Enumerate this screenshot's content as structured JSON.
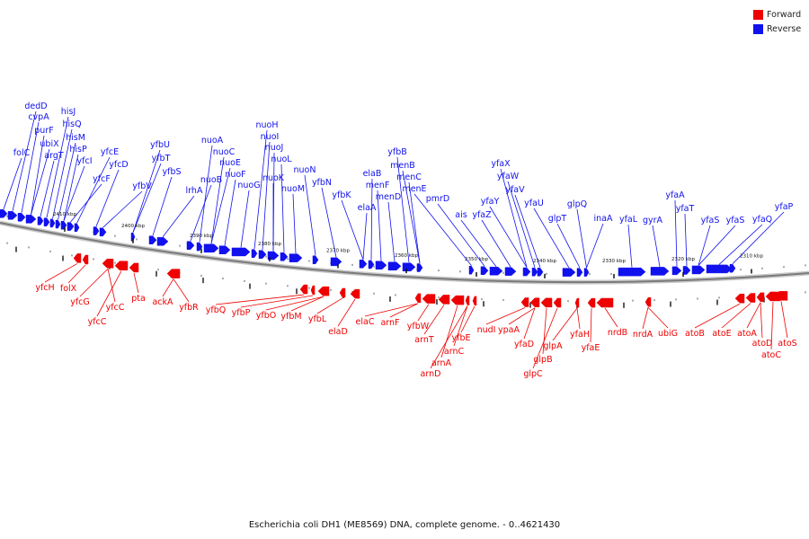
{
  "legend": {
    "forward_label": "Forward",
    "reverse_label": "Reverse",
    "forward_color": "#ee0000",
    "reverse_color": "#1111ee"
  },
  "caption": "Escherichia coli DH1 (ME8569) DNA, complete genome. - 0..4621430",
  "colors": {
    "backbone": "#7a7a7a",
    "tick": "#222222"
  },
  "scale_labels": [
    "2410 kbp",
    "2400 kbp",
    "2390 kbp",
    "2380 kbp",
    "2370 kbp",
    "2360 kbp",
    "2350 kbp",
    "2340 kbp",
    "2330 kbp",
    "2320 kbp",
    "2310 kbp"
  ],
  "reverse_genes": [
    "folC",
    "dedD",
    "cvpA",
    "purF",
    "ubiX",
    "argT",
    "hisJ",
    "hisQ",
    "hisM",
    "hisP",
    "yfcI",
    "yfcF",
    "yfcE",
    "yfcD",
    "yfbV",
    "yfbU",
    "yfbT",
    "yfbS",
    "lrhA",
    "nuoB",
    "nuoA",
    "nuoC",
    "nuoE",
    "nuoF",
    "nuoG",
    "nuoH",
    "nuoI",
    "nuoJ",
    "nuoK",
    "nuoL",
    "nuoM",
    "nuoN",
    "yfbN",
    "yfbK",
    "elaA",
    "elaB",
    "menF",
    "menD",
    "yfbB",
    "menB",
    "menC",
    "menE",
    "pmrD",
    "ais",
    "yfaZ",
    "yfaY",
    "yfaX",
    "yfaW",
    "yfaV",
    "yfaU",
    "glpT",
    "glpQ",
    "inaA",
    "yfaL",
    "gyrA",
    "yfaA",
    "yfaT",
    "yfaS",
    "yfaS",
    "yfaQ",
    "yfaP"
  ],
  "forward_genes": [
    "yfcH",
    "folX",
    "yfcG",
    "yfcC",
    "yfcC",
    "pta",
    "ackA",
    "yfbR",
    "yfbQ",
    "yfbP",
    "yfbO",
    "yfbM",
    "yfbL",
    "elaD",
    "elaC",
    "arnF",
    "yfbW",
    "arnT",
    "arnA",
    "arnD",
    "arnC",
    "yfbE",
    "nudI",
    "ypaA",
    "yfaD",
    "glpB",
    "glpC",
    "glpA",
    "yfaH",
    "yfaE",
    "nrdB",
    "nrdA",
    "ubiG",
    "atoB",
    "atoE",
    "atoA",
    "atoD",
    "atoC",
    "atoS"
  ]
}
